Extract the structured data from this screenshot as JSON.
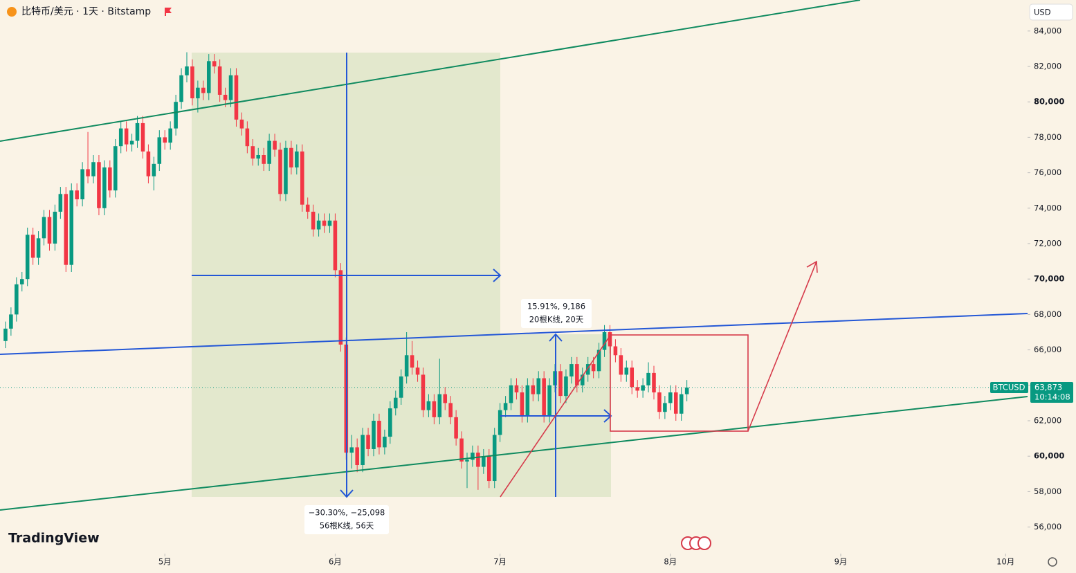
{
  "chart_data": {
    "type": "candlestick",
    "title": "比特币/美元 · 1天 · Bitstamp",
    "currency": "USD",
    "watermark": "TradingView",
    "up_color": "#089981",
    "down_color": "#f23645",
    "xlim": [
      -30,
      157
    ],
    "xticks": [
      {
        "value": 0,
        "label": "5月"
      },
      {
        "value": 31,
        "label": "6月"
      },
      {
        "value": 61,
        "label": "7月"
      },
      {
        "value": 92,
        "label": "8月"
      },
      {
        "value": 123,
        "label": "9月"
      },
      {
        "value": 153,
        "label": "10月"
      }
    ],
    "ylim": [
      54500,
      85750
    ],
    "yticks": [
      {
        "value": 56000,
        "label": "56,000"
      },
      {
        "value": 58000,
        "label": "58,000"
      },
      {
        "value": 60000,
        "label": "60,000"
      },
      {
        "value": 62000,
        "label": "62,000"
      },
      {
        "value": 64000,
        "label": "64,000"
      },
      {
        "value": 66000,
        "label": "66,000"
      },
      {
        "value": 68000,
        "label": "68,000"
      },
      {
        "value": 70000,
        "label": "70,000"
      },
      {
        "value": 72000,
        "label": "72,000"
      },
      {
        "value": 74000,
        "label": "74,000"
      },
      {
        "value": 76000,
        "label": "76,000"
      },
      {
        "value": 78000,
        "label": "78,000"
      },
      {
        "value": 80000,
        "label": "80,000"
      },
      {
        "value": 82000,
        "label": "82,000"
      },
      {
        "value": 84000,
        "label": "84,000"
      }
    ],
    "x": [
      -29,
      -28,
      -27,
      -26,
      -25,
      -24,
      -23,
      -22,
      -21,
      -20,
      -19,
      -18,
      -17,
      -16,
      -15,
      -14,
      -13,
      -12,
      -11,
      -10,
      -9,
      -8,
      -7,
      -6,
      -5,
      -4,
      -3,
      -2,
      -1,
      0,
      1,
      2,
      3,
      4,
      5,
      6,
      7,
      8,
      9,
      10,
      11,
      12,
      13,
      14,
      15,
      16,
      17,
      18,
      19,
      20,
      21,
      22,
      23,
      24,
      25,
      26,
      27,
      28,
      29,
      30,
      31,
      32,
      33,
      34,
      35,
      36,
      37,
      38,
      39,
      40,
      41,
      42,
      43,
      44,
      45,
      46,
      47,
      48,
      49,
      50,
      51,
      52,
      53,
      54,
      55,
      56,
      57,
      58,
      59,
      60,
      61,
      62,
      63,
      64,
      65,
      66,
      67,
      68,
      69,
      70,
      71,
      72,
      73,
      74,
      75,
      76,
      77,
      78,
      79,
      80,
      81,
      82,
      83,
      84,
      85,
      86,
      87,
      88,
      89,
      90,
      91,
      92,
      93,
      94,
      95
    ],
    "open": [
      66500,
      67200,
      68000,
      69700,
      70000,
      72500,
      71200,
      72300,
      73500,
      72000,
      73800,
      74800,
      70800,
      75000,
      74500,
      76200,
      75800,
      76600,
      74000,
      76300,
      75000,
      77500,
      78500,
      77600,
      77800,
      78800,
      77200,
      75800,
      76500,
      78000,
      77700,
      78500,
      80000,
      81500,
      82000,
      80200,
      80800,
      80500,
      82300,
      82000,
      80400,
      80100,
      81500,
      79000,
      78500,
      77500,
      76800,
      77000,
      76500,
      77800,
      77300,
      74800,
      77400,
      76300,
      77200,
      74200,
      73800,
      72800,
      73300,
      73000,
      73300,
      70500,
      66300,
      60200,
      60500,
      59500,
      61200,
      60400,
      62000,
      60500,
      61100,
      62700,
      63300,
      64500,
      65700,
      65000,
      64600,
      62600,
      63100,
      62200,
      63500,
      63000,
      62200,
      61000,
      59700,
      59800,
      60200,
      59400,
      60000,
      58600,
      61200,
      62600,
      63000,
      64000,
      63600,
      62300,
      64000,
      63500,
      64400,
      62300,
      64000,
      64800,
      63400,
      64500,
      65200,
      64000,
      64600,
      65200,
      64800,
      66000,
      67000,
      66200,
      65700,
      64600,
      65000,
      63900,
      63700,
      64000,
      64700,
      63600,
      62500,
      63000,
      63600,
      62400,
      63500
    ],
    "high": [
      67600,
      68400,
      70100,
      70400,
      72900,
      72900,
      72700,
      73900,
      73900,
      74200,
      75200,
      75200,
      75400,
      75400,
      76600,
      78300,
      77000,
      77000,
      76700,
      76700,
      77900,
      78900,
      78900,
      78200,
      79200,
      79200,
      77600,
      76900,
      78400,
      78400,
      78900,
      80400,
      81900,
      82800,
      82400,
      81200,
      81200,
      82700,
      82700,
      82400,
      80800,
      81900,
      81900,
      79400,
      78900,
      77900,
      77400,
      77400,
      78200,
      78200,
      77700,
      77800,
      77800,
      77600,
      77600,
      74600,
      74200,
      73700,
      73700,
      73700,
      73700,
      70900,
      66700,
      61200,
      61000,
      61600,
      61600,
      62400,
      62400,
      61500,
      63100,
      63700,
      64900,
      67000,
      66500,
      65400,
      65000,
      63500,
      63500,
      65500,
      63900,
      63400,
      62600,
      61400,
      60200,
      60600,
      60600,
      60400,
      60400,
      61600,
      63000,
      63400,
      64400,
      64400,
      64000,
      64400,
      64400,
      64800,
      64800,
      64400,
      65200,
      65200,
      64900,
      65600,
      65600,
      65000,
      65600,
      65600,
      66400,
      67400,
      67400,
      66600,
      66100,
      65400,
      65400,
      64300,
      64400,
      65300,
      65100,
      64000,
      63400,
      64000,
      64000,
      63900,
      64300
    ],
    "low": [
      66100,
      66800,
      67600,
      69300,
      69600,
      70800,
      70800,
      71900,
      71600,
      71600,
      73400,
      70400,
      70400,
      74100,
      74100,
      75400,
      75400,
      73600,
      73600,
      74600,
      74600,
      77100,
      77200,
      77200,
      77400,
      76800,
      75400,
      75000,
      76100,
      77300,
      77300,
      78100,
      79600,
      81100,
      79800,
      79400,
      80100,
      80100,
      81600,
      80000,
      79700,
      79700,
      78600,
      78100,
      77100,
      76400,
      76400,
      76100,
      76100,
      76900,
      74400,
      74400,
      75900,
      75900,
      73800,
      73400,
      72400,
      72400,
      72600,
      72600,
      70100,
      65900,
      59800,
      59300,
      59100,
      59100,
      60000,
      60000,
      60100,
      60100,
      60700,
      62300,
      62900,
      64100,
      64600,
      64200,
      62200,
      62200,
      61800,
      61800,
      62600,
      61800,
      60600,
      59300,
      58200,
      59400,
      58100,
      59000,
      58200,
      58200,
      60800,
      62200,
      62600,
      63200,
      61900,
      61900,
      63100,
      63100,
      61900,
      61900,
      63600,
      63000,
      63000,
      64100,
      63600,
      63600,
      64200,
      64400,
      64400,
      65600,
      65800,
      65300,
      64200,
      64200,
      63500,
      63300,
      63300,
      63600,
      63200,
      62100,
      62100,
      62600,
      62000,
      62000,
      63100
    ],
    "close": [
      67200,
      68000,
      69700,
      70000,
      72500,
      71200,
      72300,
      73500,
      72000,
      73800,
      74800,
      70800,
      75000,
      74500,
      76200,
      75800,
      76600,
      74000,
      76300,
      75000,
      77500,
      78500,
      77600,
      77800,
      78800,
      77200,
      75800,
      76500,
      78000,
      77700,
      78500,
      80000,
      81500,
      82000,
      80200,
      80800,
      80500,
      82300,
      82000,
      80400,
      80100,
      81500,
      79000,
      78500,
      77500,
      76800,
      77000,
      76500,
      77800,
      77300,
      74800,
      77400,
      76300,
      77200,
      74200,
      73800,
      72800,
      73300,
      73000,
      73300,
      70500,
      66300,
      60200,
      60500,
      59500,
      61200,
      60400,
      62000,
      60500,
      61100,
      62700,
      63300,
      64500,
      65700,
      65000,
      64600,
      62600,
      63100,
      62200,
      63500,
      63000,
      62200,
      61000,
      59700,
      59800,
      60200,
      59400,
      60000,
      58600,
      61200,
      62600,
      63000,
      64000,
      63600,
      62300,
      64000,
      63500,
      64400,
      62300,
      64000,
      64800,
      63400,
      64500,
      65200,
      64000,
      64600,
      65200,
      64800,
      66000,
      67000,
      66200,
      65700,
      64600,
      65000,
      63900,
      63700,
      64000,
      64700,
      63600,
      62500,
      63000,
      63600,
      62400,
      63500,
      63873
    ],
    "price_line": {
      "symbol": "BTCUSD",
      "value": 63873,
      "label": "63,873",
      "countdown": "10:14:08"
    },
    "annotations": [
      {
        "line1": "15.91%, 9,186",
        "line2": "20根K线, 20天"
      },
      {
        "line1": "−30.30%, −25,098",
        "line2": "56根K线, 56天"
      }
    ]
  }
}
